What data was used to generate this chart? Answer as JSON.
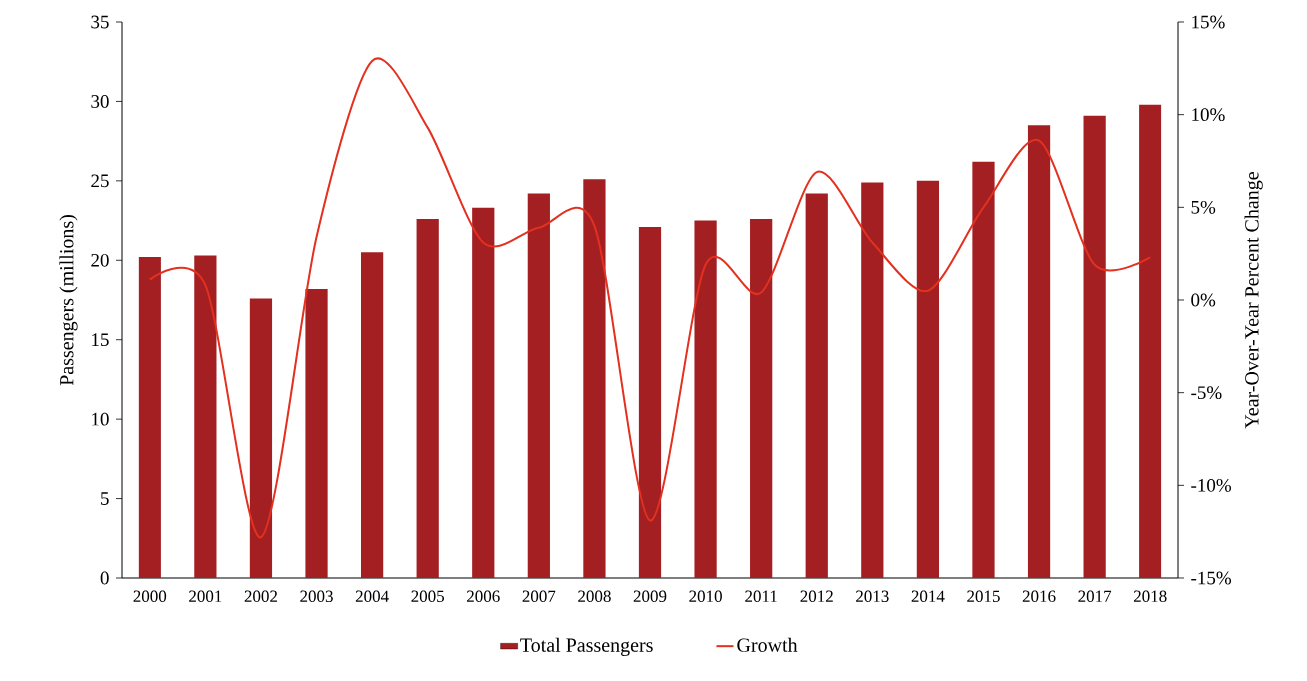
{
  "chart_data": {
    "type": "bar",
    "ylabel": "Passengers (millions)",
    "y2label": "Year-Over-Year Percent Change",
    "categories": [
      "2000",
      "2001",
      "2002",
      "2003",
      "2004",
      "2005",
      "2006",
      "2007",
      "2008",
      "2009",
      "2010",
      "2011",
      "2012",
      "2013",
      "2014",
      "2015",
      "2016",
      "2017",
      "2018"
    ],
    "series": [
      {
        "name": "Total Passengers",
        "color": "#a31f22",
        "values": [
          20.2,
          20.3,
          17.6,
          18.2,
          20.5,
          22.6,
          23.3,
          24.2,
          25.1,
          22.1,
          22.5,
          22.6,
          24.2,
          24.9,
          25.0,
          26.2,
          28.5,
          29.1,
          29.8
        ]
      },
      {
        "name": "Growth",
        "type": "line",
        "axis": "y2",
        "color": "#e3301f",
        "values": [
          1.1,
          0.8,
          -12.8,
          3.4,
          12.9,
          9.3,
          3.1,
          3.9,
          4.0,
          -11.9,
          1.9,
          0.4,
          6.9,
          3.1,
          0.5,
          5.0,
          8.6,
          1.9,
          2.3
        ]
      }
    ],
    "ylim": [
      0,
      35
    ],
    "yticks": [
      0,
      5,
      10,
      15,
      20,
      25,
      30,
      35
    ],
    "y2lim": [
      -15,
      15
    ],
    "y2ticks": [
      {
        "value": -15,
        "label": "-15%"
      },
      {
        "value": -10,
        "label": "-10%"
      },
      {
        "value": -5,
        "label": "-5%"
      },
      {
        "value": 0,
        "label": "0%"
      },
      {
        "value": 5,
        "label": "5%"
      },
      {
        "value": 10,
        "label": "10%"
      },
      {
        "value": 15,
        "label": "15%"
      }
    ],
    "marker": "none",
    "line_style": "solid",
    "legend": "bottom"
  }
}
